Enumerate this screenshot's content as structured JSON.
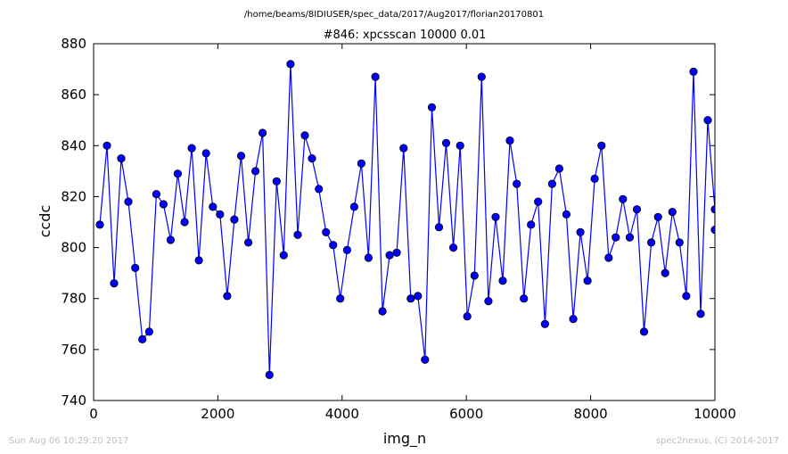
{
  "suptitle": "/home/beams/8IDIUSER/spec_data/2017/Aug2017/florian20170801",
  "footer": {
    "timestamp": "Sun Aug 06 10:29:20 2017",
    "credit": "spec2nexus, (C) 2014-2017"
  },
  "chart_data": {
    "type": "line",
    "title": "#846: xpcsscan 10000 0.01",
    "xlabel": "img_n",
    "ylabel": "ccdc",
    "xlim": [
      0,
      10000
    ],
    "ylim": [
      740,
      880
    ],
    "xticks": [
      0,
      2000,
      4000,
      6000,
      8000,
      10000
    ],
    "yticks": [
      740,
      760,
      780,
      800,
      820,
      840,
      860,
      880
    ],
    "grid": false,
    "marker": "circle",
    "color": "#0000ff",
    "series": [
      {
        "x": [
          100,
          215,
          330,
          445,
          560,
          670,
          785,
          895,
          1010,
          1125,
          1240,
          1355,
          1465,
          1580,
          1695,
          1810,
          1920,
          2035,
          2150,
          2265,
          2375,
          2490,
          2605,
          2720,
          2830,
          2945,
          3060,
          3170,
          3285,
          3400,
          3515,
          3625,
          3740,
          3855,
          3970,
          4080,
          4195,
          4310,
          4425,
          4535,
          4650,
          4765,
          4880,
          4990,
          5105,
          5220,
          5335,
          5445,
          5560,
          5675,
          5790,
          5900,
          6015,
          6130,
          6245,
          6355,
          6470,
          6585,
          6700,
          6810,
          6925,
          7040,
          7155,
          7265,
          7380,
          7495,
          7610,
          7720,
          7835,
          7950,
          8065,
          8175,
          8290,
          8405,
          8520,
          8630,
          8745,
          8860,
          8975,
          9085,
          9200,
          9315,
          9430,
          9540,
          9655,
          9770,
          9885,
          10000,
          10000
        ],
        "y": [
          809,
          840,
          786,
          835,
          818,
          792,
          764,
          767,
          821,
          817,
          803,
          829,
          810,
          839,
          795,
          837,
          816,
          813,
          781,
          811,
          836,
          802,
          830,
          845,
          750,
          826,
          797,
          872,
          805,
          844,
          835,
          823,
          806,
          801,
          780,
          799,
          816,
          833,
          796,
          867,
          775,
          797,
          798,
          839,
          780,
          781,
          756,
          855,
          808,
          841,
          800,
          840,
          773,
          789,
          867,
          779,
          812,
          787,
          842,
          825,
          780,
          809,
          818,
          770,
          825,
          831,
          813,
          772,
          806,
          787,
          827,
          840,
          796,
          804,
          819,
          804,
          815,
          767,
          802,
          812,
          790,
          814,
          802,
          781,
          869,
          774,
          850,
          815,
          807
        ]
      }
    ]
  }
}
